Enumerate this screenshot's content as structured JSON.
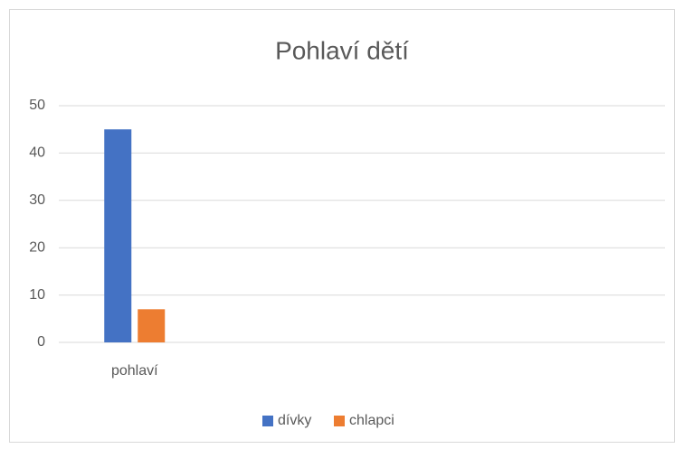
{
  "chart_data": {
    "type": "bar",
    "title": "Pohlaví dětí",
    "categories": [
      "pohlaví",
      null,
      null,
      null
    ],
    "series": [
      {
        "name": "dívky",
        "color": "#4472c4",
        "values": [
          45,
          null,
          null,
          null
        ]
      },
      {
        "name": "chlapci",
        "color": "#ed7d31",
        "values": [
          7,
          null,
          null,
          null
        ]
      }
    ],
    "ylim": [
      0,
      50
    ],
    "yticks": [
      0,
      10,
      20,
      30,
      40,
      50
    ],
    "grid": true,
    "legend": "bottom"
  }
}
